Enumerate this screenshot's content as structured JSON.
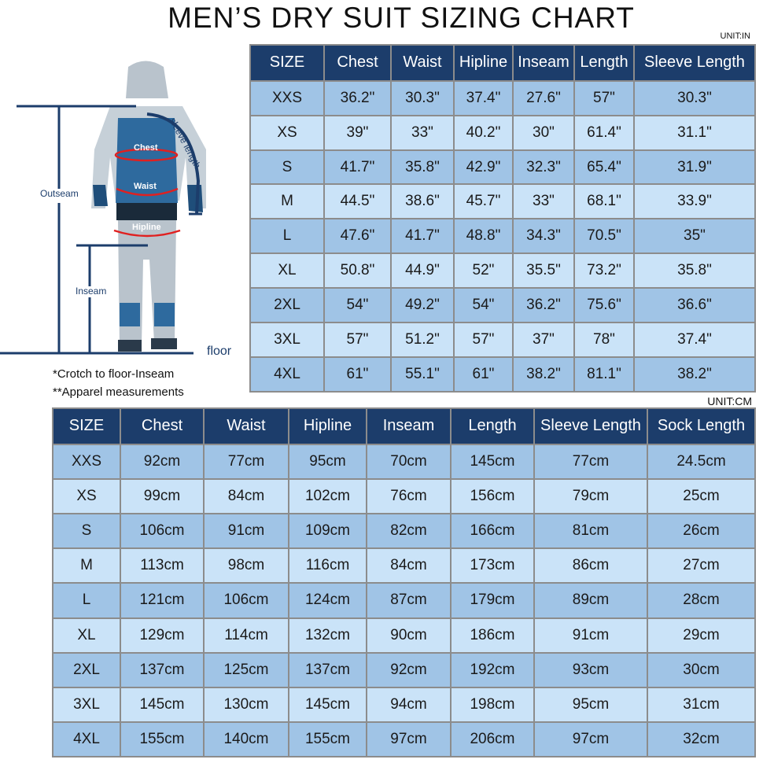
{
  "title": "MEN’S DRY SUIT SIZING CHART",
  "figure": {
    "labels": {
      "outseam": "Outseam",
      "inseam": "Inseam",
      "floor": "floor",
      "chest": "Chest",
      "waist": "Waist",
      "hipline": "Hipline",
      "sleeve": "sleeve length"
    },
    "notes": [
      "*Crotch to floor-Inseam",
      "**Apparel measurements"
    ],
    "colors": {
      "line": "#1c3d6b",
      "measure": "#e02020",
      "suit_blue": "#2e6a9e",
      "suit_grey": "#b9c3cc"
    }
  },
  "inch_table": {
    "unit": "UNIT:IN",
    "headers": [
      "SIZE",
      "Chest",
      "Waist",
      "Hipline",
      "Inseam",
      "Length",
      "Sleeve Length"
    ],
    "rows": [
      [
        "XXS",
        "36.2\"",
        "30.3\"",
        "37.4\"",
        "27.6\"",
        "57\"",
        "30.3\""
      ],
      [
        "XS",
        "39\"",
        "33\"",
        "40.2\"",
        "30\"",
        "61.4\"",
        "31.1\""
      ],
      [
        "S",
        "41.7\"",
        "35.8\"",
        "42.9\"",
        "32.3\"",
        "65.4\"",
        "31.9\""
      ],
      [
        "M",
        "44.5\"",
        "38.6\"",
        "45.7\"",
        "33\"",
        "68.1\"",
        "33.9\""
      ],
      [
        "L",
        "47.6\"",
        "41.7\"",
        "48.8\"",
        "34.3\"",
        "70.5\"",
        "35\""
      ],
      [
        "XL",
        "50.8\"",
        "44.9\"",
        "52\"",
        "35.5\"",
        "73.2\"",
        "35.8\""
      ],
      [
        "2XL",
        "54\"",
        "49.2\"",
        "54\"",
        "36.2\"",
        "75.6\"",
        "36.6\""
      ],
      [
        "3XL",
        "57\"",
        "51.2\"",
        "57\"",
        "37\"",
        "78\"",
        "37.4\""
      ],
      [
        "4XL",
        "61\"",
        "55.1\"",
        "61\"",
        "38.2\"",
        "81.1\"",
        "38.2\""
      ]
    ]
  },
  "cm_table": {
    "unit": "UNIT:CM",
    "headers": [
      "SIZE",
      "Chest",
      "Waist",
      "Hipline",
      "Inseam",
      "Length",
      "Sleeve Length",
      "Sock Length"
    ],
    "rows": [
      [
        "XXS",
        "92cm",
        "77cm",
        "95cm",
        "70cm",
        "145cm",
        "77cm",
        "24.5cm"
      ],
      [
        "XS",
        "99cm",
        "84cm",
        "102cm",
        "76cm",
        "156cm",
        "79cm",
        "25cm"
      ],
      [
        "S",
        "106cm",
        "91cm",
        "109cm",
        "82cm",
        "166cm",
        "81cm",
        "26cm"
      ],
      [
        "M",
        "113cm",
        "98cm",
        "116cm",
        "84cm",
        "173cm",
        "86cm",
        "27cm"
      ],
      [
        "L",
        "121cm",
        "106cm",
        "124cm",
        "87cm",
        "179cm",
        "89cm",
        "28cm"
      ],
      [
        "XL",
        "129cm",
        "114cm",
        "132cm",
        "90cm",
        "186cm",
        "91cm",
        "29cm"
      ],
      [
        "2XL",
        "137cm",
        "125cm",
        "137cm",
        "92cm",
        "192cm",
        "93cm",
        "30cm"
      ],
      [
        "3XL",
        "145cm",
        "130cm",
        "145cm",
        "94cm",
        "198cm",
        "95cm",
        "31cm"
      ],
      [
        "4XL",
        "155cm",
        "140cm",
        "155cm",
        "97cm",
        "206cm",
        "97cm",
        "32cm"
      ]
    ]
  },
  "colors": {
    "header_bg": "#1c3d6b",
    "row_dark": "#a0c4e6",
    "row_light": "#cae3f8",
    "grid": "#8c8c8c"
  }
}
